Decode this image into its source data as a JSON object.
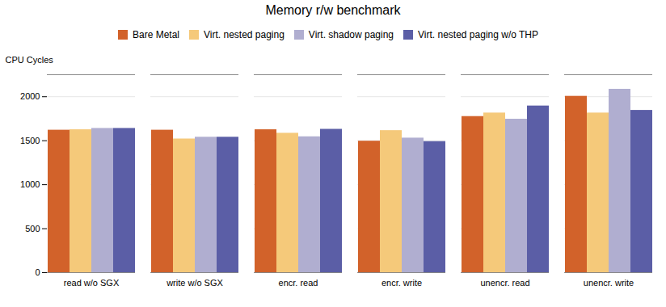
{
  "chart_data": {
    "type": "bar",
    "title": "Memory r/w benchmark",
    "ylabel": "CPU Cycles",
    "categories": [
      "read w/o SGX",
      "write w/o SGX",
      "encr. read",
      "encr. write",
      "unencr. read",
      "unencr. write"
    ],
    "series": [
      {
        "name": "Bare Metal",
        "color": "#d2622a",
        "values": [
          1620,
          1620,
          1625,
          1495,
          1775,
          2005
        ]
      },
      {
        "name": "Virt. nested paging",
        "color": "#f5c97a",
        "values": [
          1625,
          1520,
          1585,
          1615,
          1815,
          1815
        ]
      },
      {
        "name": "Virt. shadow paging",
        "color": "#b0aed0",
        "values": [
          1640,
          1540,
          1545,
          1530,
          1745,
          2085
        ]
      },
      {
        "name": "Virt. nested paging w/o THP",
        "color": "#5b5ea6",
        "values": [
          1640,
          1540,
          1630,
          1490,
          1895,
          1845
        ]
      }
    ],
    "ylim": [
      0,
      2250
    ],
    "yticks": [
      0,
      500,
      1000,
      1500,
      2000
    ],
    "grid": true,
    "legend": "top"
  }
}
